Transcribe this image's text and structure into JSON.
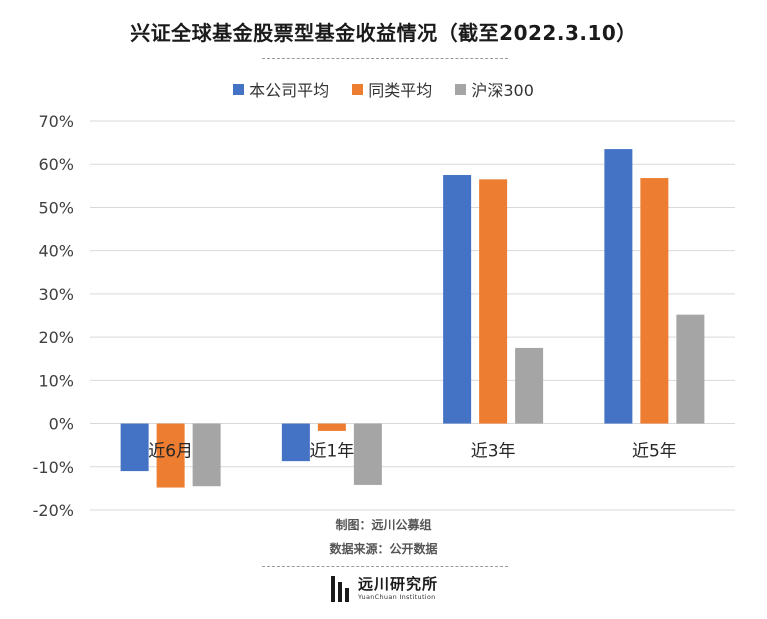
{
  "title": "兴证全球基金股票型基金收益情况（截至2022.3.10）",
  "credit_author": "制图：远川公募组",
  "credit_source": "数据来源：公开数据",
  "logo": {
    "name_cn": "远川研究所",
    "name_en": "YuanChuan Institution",
    "icon": "bar-logo-icon"
  },
  "colors": {
    "series_1": "#4472C4",
    "series_2": "#ED7D31",
    "series_3": "#A5A5A5",
    "grid": "#d9d9d9"
  },
  "chart_data": {
    "type": "bar",
    "title": "兴证全球基金股票型基金收益情况（截至2022.3.10）",
    "categories": [
      "近6月",
      "近1年",
      "近3年",
      "近5年"
    ],
    "series": [
      {
        "name": "本公司平均",
        "values": [
          -11.0,
          -8.7,
          57.5,
          63.5
        ]
      },
      {
        "name": "同类平均",
        "values": [
          -14.8,
          -1.7,
          56.5,
          56.8
        ]
      },
      {
        "name": "沪深300",
        "values": [
          -14.5,
          -14.2,
          17.5,
          25.2
        ]
      }
    ],
    "ylim": [
      -20,
      70
    ],
    "yticks": [
      -20,
      -10,
      0,
      10,
      20,
      30,
      40,
      50,
      60,
      70
    ],
    "ytick_labels": [
      "-20%",
      "-10%",
      "0%",
      "10%",
      "20%",
      "30%",
      "40%",
      "50%",
      "60%",
      "70%"
    ],
    "grid": true,
    "legend_position": "top-center"
  }
}
